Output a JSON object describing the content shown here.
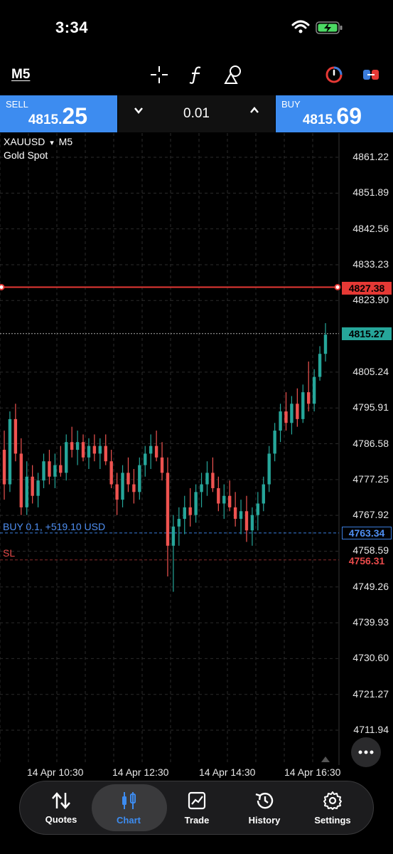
{
  "status_bar": {
    "time": "3:34"
  },
  "toolbar": {
    "timeframe": "M5"
  },
  "trade": {
    "sell_label": "SELL",
    "sell_price_small": "4815.",
    "sell_price_big": "25",
    "lot": "0.01",
    "buy_label": "BUY",
    "buy_price_small": "4815.",
    "buy_price_big": "69"
  },
  "chart": {
    "symbol": "XAUUSD",
    "symbol_arrow": "▾",
    "timeframe": "M5",
    "description": "Gold Spot",
    "position_label": "BUY 0.1, +519.10 USD",
    "sl_label": "SL",
    "price_tag_red": "4827.38",
    "price_tag_current": "4815.27",
    "price_tag_position": "4763.34",
    "price_tag_sl": "4756.31",
    "colors": {
      "up": "#26a69a",
      "down": "#ef5350",
      "order": "#e53935",
      "position": "#3b7ddd"
    }
  },
  "chart_data": {
    "type": "candlestick",
    "symbol": "XAUUSD",
    "timeframe": "M5",
    "y_ticks": [
      "4861.22",
      "4851.89",
      "4842.56",
      "4833.23",
      "4823.90",
      "4805.24",
      "4795.91",
      "4786.58",
      "4777.25",
      "4767.92",
      "4758.59",
      "4749.26",
      "4739.93",
      "4730.60",
      "4721.27",
      "4711.94"
    ],
    "x_ticks": [
      "14 Apr 10:30",
      "14 Apr 12:30",
      "14 Apr 14:30",
      "14 Apr 16:30"
    ],
    "ylim": [
      4706,
      4865
    ],
    "lines": {
      "red_order": 4827.38,
      "current_price": 4815.27,
      "buy_position": 4763.34,
      "stop_loss": 4756.31
    },
    "candles": [
      [
        4785,
        4790,
        4772,
        4776
      ],
      [
        4776,
        4795,
        4774,
        4793
      ],
      [
        4793,
        4797,
        4782,
        4784
      ],
      [
        4784,
        4788,
        4768,
        4770
      ],
      [
        4770,
        4782,
        4768,
        4778
      ],
      [
        4778,
        4781,
        4771,
        4773
      ],
      [
        4773,
        4779,
        4770,
        4777
      ],
      [
        4777,
        4784,
        4775,
        4782
      ],
      [
        4782,
        4785,
        4776,
        4778
      ],
      [
        4778,
        4784,
        4775,
        4781
      ],
      [
        4781,
        4786,
        4778,
        4779
      ],
      [
        4779,
        4789,
        4777,
        4787
      ],
      [
        4787,
        4791,
        4783,
        4785
      ],
      [
        4785,
        4790,
        4781,
        4787
      ],
      [
        4787,
        4789,
        4782,
        4783
      ],
      [
        4783,
        4788,
        4780,
        4786
      ],
      [
        4786,
        4789,
        4782,
        4784
      ],
      [
        4784,
        4788,
        4780,
        4786
      ],
      [
        4786,
        4789,
        4781,
        4782
      ],
      [
        4782,
        4785,
        4775,
        4776
      ],
      [
        4776,
        4779,
        4768,
        4772
      ],
      [
        4772,
        4781,
        4770,
        4779
      ],
      [
        4779,
        4783,
        4774,
        4776
      ],
      [
        4776,
        4780,
        4771,
        4774
      ],
      [
        4774,
        4783,
        4772,
        4781
      ],
      [
        4781,
        4786,
        4778,
        4784
      ],
      [
        4784,
        4789,
        4780,
        4786
      ],
      [
        4786,
        4790,
        4782,
        4783
      ],
      [
        4783,
        4787,
        4777,
        4779
      ],
      [
        4779,
        4783,
        4752,
        4760
      ],
      [
        4760,
        4768,
        4748,
        4765
      ],
      [
        4765,
        4770,
        4760,
        4767
      ],
      [
        4767,
        4773,
        4763,
        4770
      ],
      [
        4770,
        4775,
        4765,
        4768
      ],
      [
        4768,
        4776,
        4766,
        4774
      ],
      [
        4774,
        4779,
        4770,
        4776
      ],
      [
        4776,
        4782,
        4773,
        4779
      ],
      [
        4779,
        4783,
        4774,
        4775
      ],
      [
        4775,
        4778,
        4769,
        4771
      ],
      [
        4771,
        4776,
        4767,
        4773
      ],
      [
        4773,
        4777,
        4769,
        4770
      ],
      [
        4770,
        4774,
        4765,
        4767
      ],
      [
        4767,
        4772,
        4763,
        4769
      ],
      [
        4769,
        4773,
        4761,
        4764
      ],
      [
        4764,
        4770,
        4760,
        4768
      ],
      [
        4768,
        4774,
        4764,
        4771
      ],
      [
        4771,
        4778,
        4769,
        4776
      ],
      [
        4776,
        4786,
        4774,
        4784
      ],
      [
        4784,
        4792,
        4782,
        4790
      ],
      [
        4790,
        4797,
        4787,
        4795
      ],
      [
        4795,
        4800,
        4790,
        4792
      ],
      [
        4792,
        4799,
        4789,
        4797
      ],
      [
        4797,
        4801,
        4791,
        4793
      ],
      [
        4793,
        4802,
        4792,
        4800
      ],
      [
        4800,
        4808,
        4795,
        4797
      ],
      [
        4797,
        4806,
        4795,
        4804
      ],
      [
        4804,
        4812,
        4803,
        4810
      ],
      [
        4810,
        4818,
        4808,
        4815
      ]
    ]
  },
  "nav": {
    "items": [
      {
        "label": "Quotes",
        "icon": "quotes-icon"
      },
      {
        "label": "Chart",
        "icon": "chart-icon"
      },
      {
        "label": "Trade",
        "icon": "trade-icon"
      },
      {
        "label": "History",
        "icon": "history-icon"
      },
      {
        "label": "Settings",
        "icon": "settings-icon"
      }
    ]
  }
}
